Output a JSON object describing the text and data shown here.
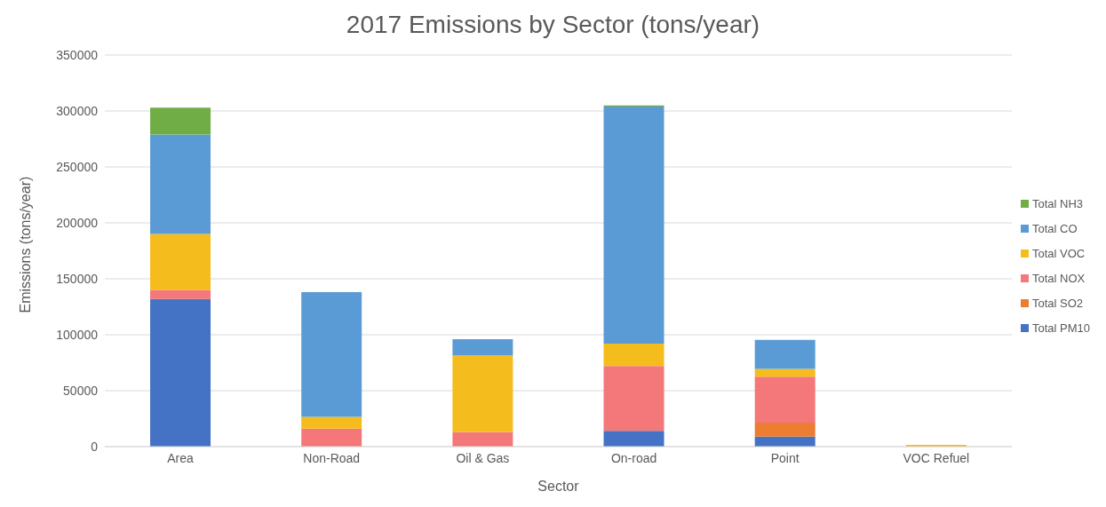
{
  "chart_data": {
    "type": "bar",
    "title": "2017 Emissions by Sector (tons/year)",
    "xlabel": "Sector",
    "ylabel": "Emissions (tons/year)",
    "categories": [
      "Area",
      "Non-Road",
      "Oil & Gas",
      "On-road",
      "Point",
      "VOC Refuel"
    ],
    "stacked": true,
    "ylim": [
      0,
      350000
    ],
    "yticks": [
      0,
      50000,
      100000,
      150000,
      200000,
      250000,
      300000,
      350000
    ],
    "grid": "y",
    "legend": "right",
    "series": [
      {
        "name": "Total PM10",
        "color": "#4472c4",
        "values": [
          132000,
          0,
          0,
          14000,
          9000,
          0
        ]
      },
      {
        "name": "Total SO2",
        "color": "#ed7d31",
        "values": [
          0,
          0,
          0,
          0,
          12500,
          0
        ]
      },
      {
        "name": "Total NOX",
        "color": "#f4777a",
        "values": [
          8000,
          16000,
          13000,
          58000,
          41000,
          0
        ]
      },
      {
        "name": "Total VOC",
        "color": "#f5bc1d",
        "values": [
          50000,
          10500,
          68500,
          20000,
          7000,
          1500
        ]
      },
      {
        "name": "Total CO",
        "color": "#5b9bd5",
        "values": [
          89000,
          111500,
          14500,
          212000,
          26000,
          null
        ]
      },
      {
        "name": "Total NH3",
        "color": "#70ad47",
        "values": [
          24000,
          0,
          0,
          1000,
          0,
          null
        ]
      }
    ]
  }
}
